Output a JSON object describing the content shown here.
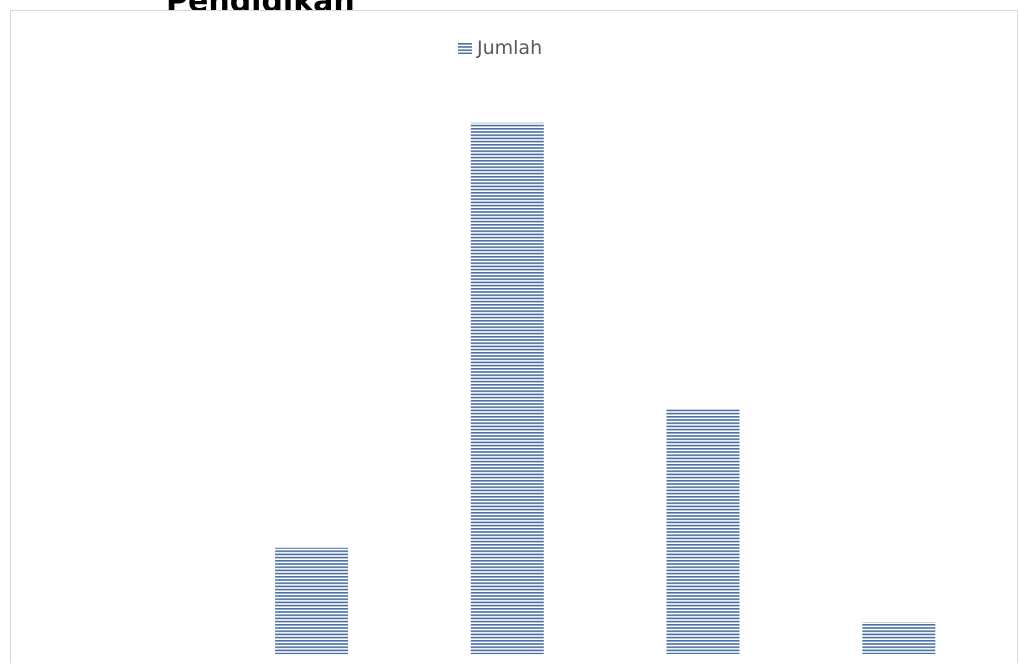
{
  "chart_data": {
    "type": "bar",
    "title": "Pendidikan",
    "categories": [
      "",
      "",
      "",
      ""
    ],
    "series": [
      {
        "name": "Jumlah",
        "values": [
          20,
          100,
          46,
          6
        ]
      }
    ],
    "ylim": [
      0,
      112
    ],
    "grid": false,
    "legend_position": "top-center",
    "fill_pattern": "horizontal-stripes",
    "colors": {
      "series": "#4a6fa5",
      "frame": "#d9d9d9",
      "legend_text": "#595959",
      "title": "#000000"
    }
  }
}
